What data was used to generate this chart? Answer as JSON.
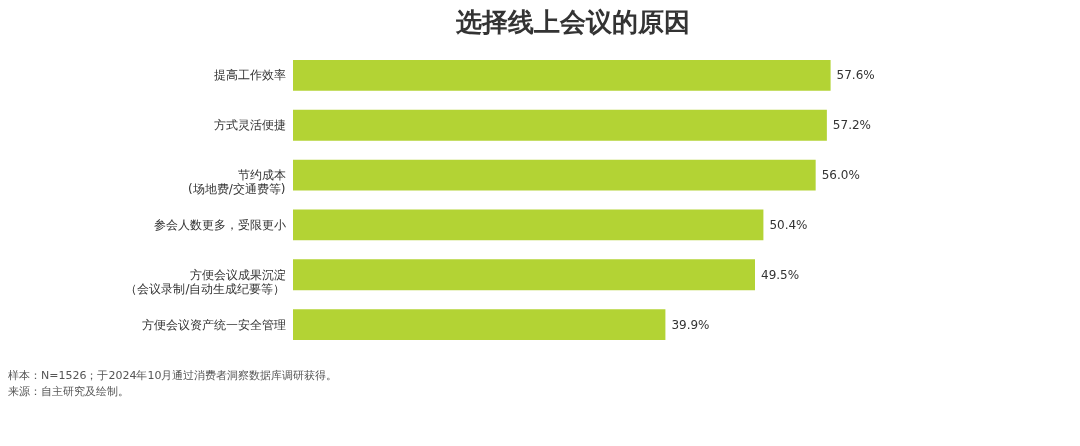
{
  "chart_data": {
    "type": "bar",
    "orientation": "horizontal",
    "title": "选择线上会议的原因",
    "categories": [
      "提高工作效率",
      "方式灵活便捷",
      "节约成本(场地费/交通费等)",
      "参会人数更多，受限更小",
      "方便会议成果沉淀（会议录制/自动生成纪要等）",
      "方便会议资产统一安全管理"
    ],
    "values": [
      57.6,
      57.2,
      56.0,
      50.4,
      49.5,
      39.9
    ],
    "value_labels": [
      "57.6%",
      "57.2%",
      "56.0%",
      "50.4%",
      "49.5%",
      "39.9%"
    ],
    "color": "#b3d334",
    "tick_labels": "y",
    "annotations": [
      "样本：N=1526；于2024年10月通过消费者洞察数据库调研获得。",
      "来源：自主研究及绘制。"
    ]
  }
}
